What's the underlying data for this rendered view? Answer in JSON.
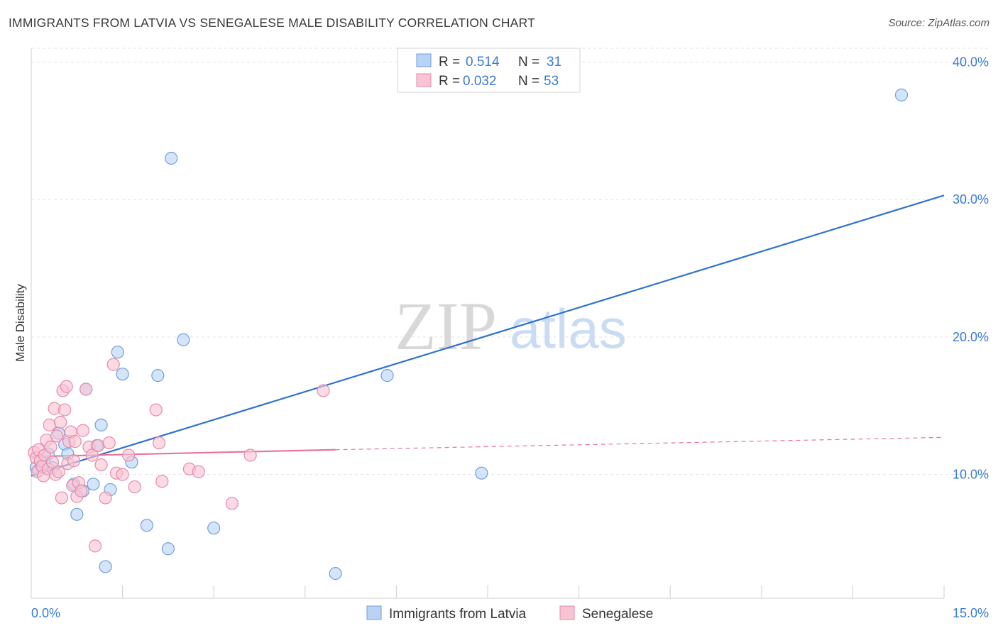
{
  "header": {
    "title": "IMMIGRANTS FROM LATVIA VS SENEGALESE MALE DISABILITY CORRELATION CHART",
    "source": "Source: ZipAtlas.com"
  },
  "watermark": {
    "zip": "ZIP",
    "atlas": "atlas"
  },
  "colors": {
    "blue_fill": "#b9d3f5",
    "blue_stroke": "#6f9fdc",
    "blue_line": "#2f72d0",
    "pink_fill": "#f8c4d4",
    "pink_stroke": "#e68aa8",
    "pink_line": "#e8739a",
    "accent_text": "#3a7bd5",
    "grid": "#e3e3e3"
  },
  "legend": {
    "rows": [
      {
        "r_label": "R =",
        "r_value": "0.514",
        "n_label": "N =",
        "n_value": "31"
      },
      {
        "r_label": "R =",
        "r_value": "0.032",
        "n_label": "N =",
        "n_value": "53"
      }
    ]
  },
  "bottom_legend": [
    "Immigrants from Latvia",
    "Senegalese"
  ],
  "chart_data": {
    "type": "scatter",
    "title": "IMMIGRANTS FROM LATVIA VS SENEGALESE MALE DISABILITY CORRELATION CHART",
    "xlabel": "",
    "ylabel": "Male Disability",
    "xlim": [
      0,
      15
    ],
    "ylim": [
      1,
      41
    ],
    "x_tick_labels": [
      "0.0%",
      "15.0%"
    ],
    "y_ticks": [
      10,
      20,
      30,
      40
    ],
    "y_tick_labels": [
      "10.0%",
      "20.0%",
      "30.0%",
      "40.0%"
    ],
    "grid": true,
    "legend_position": "top-center",
    "series": [
      {
        "name": "Immigrants from Latvia",
        "color": "#6f9fdc",
        "r": 0.514,
        "n": 31,
        "trend": {
          "x": [
            0.0,
            15.0
          ],
          "y": [
            9.9,
            30.3
          ],
          "style": "solid"
        },
        "points": [
          [
            0.08,
            10.5
          ],
          [
            0.18,
            10.5
          ],
          [
            0.22,
            10.8
          ],
          [
            0.28,
            11.5
          ],
          [
            0.35,
            10.5
          ],
          [
            0.45,
            13.0
          ],
          [
            0.55,
            12.2
          ],
          [
            0.6,
            11.5
          ],
          [
            0.7,
            9.3
          ],
          [
            0.75,
            7.1
          ],
          [
            0.85,
            8.8
          ],
          [
            0.9,
            16.2
          ],
          [
            1.02,
            9.3
          ],
          [
            1.08,
            12.1
          ],
          [
            1.15,
            13.6
          ],
          [
            1.3,
            8.9
          ],
          [
            1.42,
            18.9
          ],
          [
            1.5,
            17.3
          ],
          [
            1.65,
            10.9
          ],
          [
            1.9,
            6.3
          ],
          [
            2.08,
            17.2
          ],
          [
            2.25,
            4.6
          ],
          [
            2.3,
            33.0
          ],
          [
            2.5,
            19.8
          ],
          [
            3.0,
            6.1
          ],
          [
            1.22,
            3.3
          ],
          [
            5.0,
            2.8
          ],
          [
            5.85,
            17.2
          ],
          [
            7.4,
            10.1
          ],
          [
            14.3,
            37.6
          ],
          [
            0.12,
            10.3
          ]
        ]
      },
      {
        "name": "Senegalese",
        "color": "#e68aa8",
        "r": 0.032,
        "n": 53,
        "trend": {
          "x": [
            0.0,
            5.0
          ],
          "y": [
            11.3,
            11.8
          ],
          "style": "solid",
          "extended": {
            "x": [
              5.0,
              15.0
            ],
            "y": [
              11.8,
              12.7
            ],
            "style": "dashed"
          }
        },
        "points": [
          [
            0.05,
            11.6
          ],
          [
            0.08,
            11.2
          ],
          [
            0.1,
            10.2
          ],
          [
            0.12,
            11.8
          ],
          [
            0.15,
            11.0
          ],
          [
            0.18,
            10.6
          ],
          [
            0.2,
            9.9
          ],
          [
            0.22,
            11.4
          ],
          [
            0.25,
            12.5
          ],
          [
            0.28,
            10.4
          ],
          [
            0.3,
            13.6
          ],
          [
            0.32,
            12.0
          ],
          [
            0.35,
            10.9
          ],
          [
            0.38,
            14.8
          ],
          [
            0.4,
            10.0
          ],
          [
            0.42,
            12.8
          ],
          [
            0.45,
            10.2
          ],
          [
            0.48,
            13.8
          ],
          [
            0.5,
            8.3
          ],
          [
            0.52,
            16.1
          ],
          [
            0.55,
            14.7
          ],
          [
            0.58,
            16.4
          ],
          [
            0.6,
            10.8
          ],
          [
            0.62,
            12.4
          ],
          [
            0.65,
            13.1
          ],
          [
            0.68,
            9.2
          ],
          [
            0.7,
            11.0
          ],
          [
            0.72,
            12.4
          ],
          [
            0.75,
            8.4
          ],
          [
            0.78,
            9.4
          ],
          [
            0.82,
            8.8
          ],
          [
            0.85,
            13.2
          ],
          [
            0.9,
            16.2
          ],
          [
            0.95,
            12.0
          ],
          [
            1.0,
            11.4
          ],
          [
            1.05,
            4.8
          ],
          [
            1.1,
            12.1
          ],
          [
            1.15,
            10.7
          ],
          [
            1.22,
            8.3
          ],
          [
            1.28,
            12.3
          ],
          [
            1.35,
            18.0
          ],
          [
            1.4,
            10.1
          ],
          [
            1.5,
            10.0
          ],
          [
            1.6,
            11.4
          ],
          [
            1.7,
            9.1
          ],
          [
            2.05,
            14.7
          ],
          [
            2.1,
            12.3
          ],
          [
            2.15,
            9.5
          ],
          [
            2.6,
            10.4
          ],
          [
            2.75,
            10.2
          ],
          [
            3.3,
            7.9
          ],
          [
            3.6,
            11.4
          ],
          [
            4.8,
            16.1
          ]
        ]
      }
    ]
  }
}
